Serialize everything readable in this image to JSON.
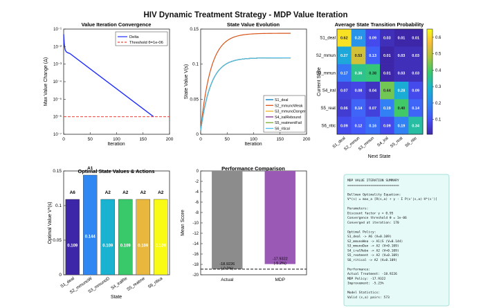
{
  "title": "HIV Dynamic Treatment Strategy - MDP Value Iteration",
  "chart_data": [
    {
      "id": "convergence",
      "type": "line",
      "title": "Value Iteration Convergence",
      "xlabel": "Iteration",
      "ylabel": "Max Value Change (Δ)",
      "xlim": [
        0,
        200
      ],
      "xticks": [
        "0",
        "50",
        "100",
        "150",
        "200"
      ],
      "yscale": "log",
      "ylim_exp": [
        -7,
        -1
      ],
      "yticks": [
        "10⁻¹",
        "10⁻²",
        "10⁻³",
        "10⁻⁴",
        "10⁻⁵",
        "10⁻⁶",
        "10⁻⁷"
      ],
      "series": [
        {
          "name": "Delta",
          "color": "#1f2bff",
          "x": [
            0,
            1,
            2,
            3,
            5,
            8,
            12,
            170
          ],
          "log10_y": [
            -1.3,
            -1.8,
            -2.05,
            -2.2,
            -2.3,
            -2.35,
            -2.4,
            -6.0
          ]
        },
        {
          "name": "Threshold θ=1e-06",
          "color": "#e8403a",
          "dashed": true,
          "log10_y_const": -6
        }
      ],
      "legend": "top-right"
    },
    {
      "id": "state_values",
      "type": "line",
      "title": "State Value Evolution",
      "xlabel": "Iteration",
      "ylabel": "State Value V(s)",
      "xlim": [
        0,
        200
      ],
      "xticks": [
        "0",
        "50",
        "100",
        "150",
        "200"
      ],
      "ylim": [
        0,
        0.15
      ],
      "yticks": [
        "0",
        "0.05",
        "0.1",
        "0.15"
      ],
      "final_iteration": 170,
      "series": [
        {
          "name": "S1_deal",
          "color": "#0072bd",
          "final": 0.109
        },
        {
          "name": "S2_mmunoWeak",
          "color": "#d95319",
          "final": 0.144
        },
        {
          "name": "S3_mmunoDanger",
          "color": "#edb120",
          "final": 0.109
        },
        {
          "name": "S4_iralRebound",
          "color": "#7e2f8e",
          "final": 0.109
        },
        {
          "name": "S5_reatmentFail",
          "color": "#77ac30",
          "final": 0.109
        },
        {
          "name": "S6_ritical",
          "color": "#4dbeee",
          "final": 0.109
        }
      ],
      "legend": "bottom-right"
    },
    {
      "id": "transition",
      "type": "heatmap",
      "title": "Average State Transition Probability",
      "xlabel": "Next State",
      "ylabel": "Current State",
      "row_labels": [
        "S1_deal",
        "S2_mmun",
        "S3_mmun",
        "S4_iral",
        "S5_reat",
        "S6_ritic"
      ],
      "col_labels": [
        "S1_deal",
        "S2_mmun",
        "S3_mmun",
        "S4_iral",
        "S5_reat",
        "S6_ritic"
      ],
      "values": [
        [
          0.62,
          0.23,
          0.09,
          0.03,
          0.01,
          0.01
        ],
        [
          0.27,
          0.53,
          0.13,
          0.01,
          0.03,
          0.03
        ],
        [
          0.17,
          0.36,
          0.38,
          0.01,
          0.03,
          0.03
        ],
        [
          0.07,
          0.08,
          0.04,
          0.44,
          0.28,
          0.09
        ],
        [
          0.06,
          0.14,
          0.07,
          0.19,
          0.4,
          0.14
        ],
        [
          0.09,
          0.12,
          0.16,
          0.09,
          0.19,
          0.34
        ]
      ],
      "labels": [
        [
          "0.62",
          "0.23",
          "0.09",
          "0.03",
          "0.01",
          "0.01"
        ],
        [
          "0.27",
          "0.53",
          "0.13",
          "0.01",
          "0.03",
          "0.03"
        ],
        [
          "0.17",
          "0.36",
          "0.38",
          "0.01",
          "0.03",
          "0.03"
        ],
        [
          "0.07",
          "0.08",
          "0.04",
          "0.44",
          "0.28",
          "0.09"
        ],
        [
          "0.06",
          "0.14",
          "0.07",
          "0.19",
          "0.40",
          "0.14"
        ],
        [
          "0.09",
          "0.12",
          "0.16",
          "0.09",
          "0.19",
          "0.34"
        ]
      ],
      "clim": [
        0.01,
        0.65
      ],
      "colorbar_ticks": [
        "0.1",
        "0.2",
        "0.3",
        "0.4",
        "0.5",
        "0.6"
      ]
    },
    {
      "id": "optimal",
      "type": "bar",
      "title": "Optimal State Values & Actions",
      "xlabel": "State",
      "ylabel": "Optimal Value V*(s)",
      "categories": [
        "S1_deal",
        "S2_mmunoW",
        "S3_mmunoD",
        "S4_iralRe",
        "S5_reatme",
        "S6_ritica"
      ],
      "values": [
        0.109,
        0.144,
        0.109,
        0.109,
        0.109,
        0.109
      ],
      "value_labels": [
        "0.109",
        "0.144",
        "0.109",
        "0.109",
        "0.109",
        "0.109"
      ],
      "actions": [
        "A6",
        "A1",
        "A2",
        "A2",
        "A2",
        "A2"
      ],
      "colors": [
        "#3e26a8",
        "#2e87f3",
        "#19b2d0",
        "#3ac96a",
        "#e9b73c",
        "#f9fb15"
      ],
      "ylim": [
        0,
        0.15
      ],
      "yticks": [
        "0",
        "0.05",
        "0.1",
        "0.15"
      ]
    },
    {
      "id": "performance",
      "type": "bar",
      "title": "Performance Comparison",
      "ylabel": "Mean Score",
      "categories": [
        "Actual",
        "MDP"
      ],
      "values": [
        -18.9226,
        -17.9322
      ],
      "value_labels": [
        "-18.9226\n(-0.0%)",
        "-17.9322\n(-5.2%)"
      ],
      "colors": [
        "#8c8c8c",
        "#9b59b6"
      ],
      "baseline": -18.9226,
      "ylim": [
        -20,
        0
      ],
      "yticks": [
        "0",
        "-2",
        "-4",
        "-6",
        "-8",
        "-10",
        "-12",
        "-14",
        "-16",
        "-18",
        "-20"
      ]
    }
  ],
  "summary_lines": [
    "MDP VALUE ITERATION SUMMARY",
    "===========================",
    "",
    "Bellman Optimality Equation:",
    "  V*(s) = max_a [R(s,a) + γ · Σ P(s'|s,a)·V*(s')]",
    "",
    "Parameters:",
    "  Discount factor γ = 0.95",
    "  Convergence threshold θ = 1e-06",
    "  Converged at iteration: 170",
    "",
    "Optimal Policy:",
    "  S1_deal -> A6 (V=0.109)",
    "  S2_mmunoWea -> A1(S (V=0.144)",
    "  S3_mmunoDan -> A2 (V=0.109)",
    "  S4_iralRebo -> A2 (V=0.109)",
    "  S5_reatment -> A2 (V=0.109)",
    "  S6_ritical -> A2 (V=0.109)",
    "",
    "Performance:",
    "  Actual Treatment: -18.9226",
    "  MDP Policy:       -17.9322",
    "  Improvement:      -5.23%",
    "",
    "Model Statistics:",
    "  Valid (s,a) pairs: 573"
  ]
}
